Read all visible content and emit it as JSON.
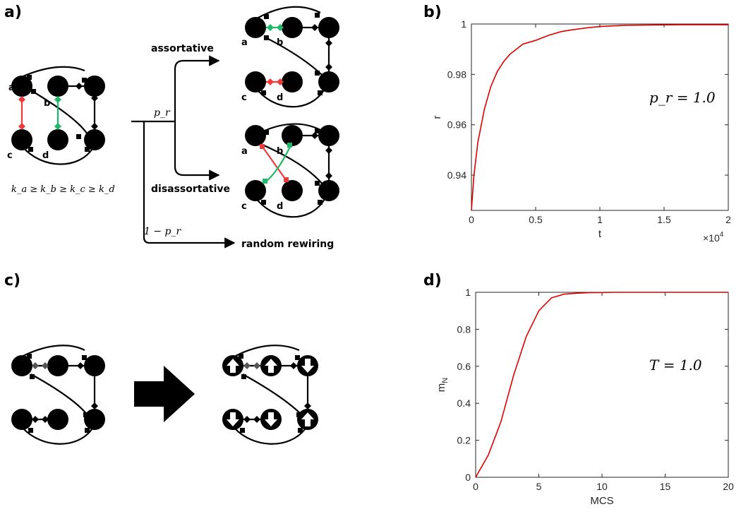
{
  "panels": {
    "a": "a)",
    "b": "b)",
    "c": "c)",
    "d": "d)"
  },
  "diagram_a": {
    "node_letters": [
      "a",
      "b",
      "c",
      "d"
    ],
    "degree_order": "k_a ≥ k_b ≥ k_c ≥ k_d",
    "branch_pr": "p_r",
    "branch_1mpr": "1 − p_r",
    "assortative": "assortative",
    "disassortative": "disassortative",
    "random_rewiring": "random rewiring",
    "colors": {
      "red": "#ee3a3a",
      "green": "#1db868"
    }
  },
  "diagram_c": {
    "arrow": "right-arrow",
    "spin_icons": [
      "up",
      "up",
      "down",
      "down",
      "down",
      "up"
    ]
  },
  "chart_data": [
    {
      "type": "line",
      "panel": "b",
      "xlabel": "t",
      "ylabel": "r",
      "x_multiplier_label": "×10",
      "x_multiplier_exp": "4",
      "annotation": "p_r = 1.0",
      "xlim": [
        0,
        2
      ],
      "ylim": [
        0.926,
        1.0
      ],
      "xticks": [
        "0",
        "0.5",
        "1",
        "1.5",
        "2"
      ],
      "yticks": [
        "0.94",
        "0.96",
        "0.98",
        "1"
      ],
      "line_color": "#e00000",
      "x": [
        0,
        0.02,
        0.05,
        0.1,
        0.15,
        0.2,
        0.25,
        0.3,
        0.35,
        0.4,
        0.5,
        0.6,
        0.7,
        0.8,
        0.9,
        1.0,
        1.2,
        1.4,
        1.6,
        1.8,
        2.0
      ],
      "y": [
        0.926,
        0.94,
        0.953,
        0.966,
        0.975,
        0.981,
        0.985,
        0.988,
        0.99,
        0.992,
        0.9935,
        0.9955,
        0.997,
        0.9978,
        0.9985,
        0.999,
        0.9995,
        0.9996,
        0.9997,
        0.9997,
        0.9997
      ]
    },
    {
      "type": "line",
      "panel": "d",
      "xlabel": "MCS",
      "ylabel": "m",
      "ylabel_sub": "N",
      "annotation": "T = 1.0",
      "xlim": [
        0,
        20
      ],
      "ylim": [
        0,
        1
      ],
      "xticks": [
        "0",
        "5",
        "10",
        "15",
        "20"
      ],
      "yticks": [
        "0",
        "0.2",
        "0.4",
        "0.6",
        "0.8",
        "1"
      ],
      "line_color": "#e00000",
      "x": [
        0,
        1,
        2,
        3,
        4,
        5,
        6,
        7,
        8,
        9,
        10,
        11,
        12,
        13,
        14,
        15,
        16,
        17,
        18,
        19,
        20
      ],
      "y": [
        0,
        0.12,
        0.3,
        0.55,
        0.76,
        0.9,
        0.97,
        0.99,
        0.995,
        0.998,
        0.999,
        1.0,
        1.0,
        1.0,
        1.0,
        1.0,
        1.0,
        1.0,
        1.0,
        1.0,
        1.0
      ]
    }
  ]
}
